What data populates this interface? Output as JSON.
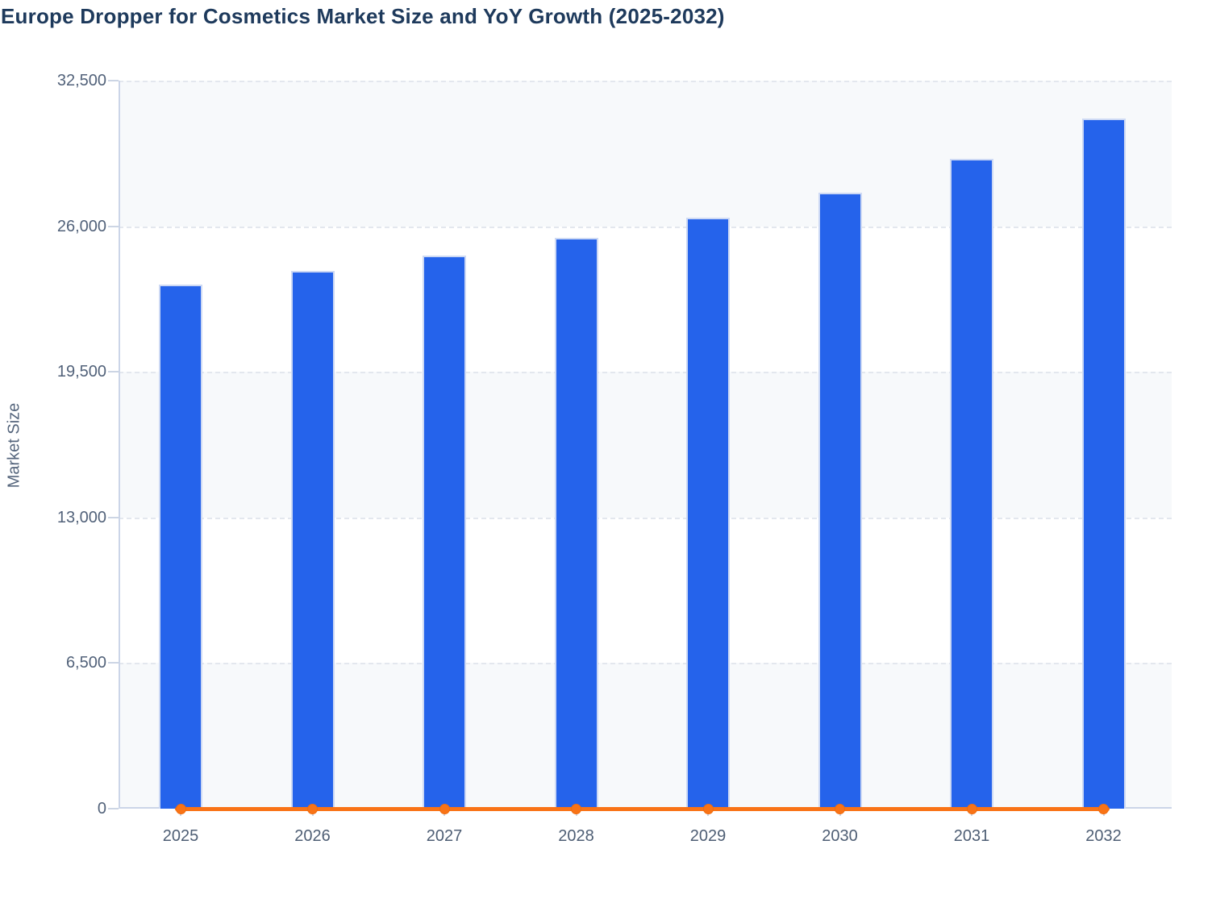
{
  "page": {
    "title": "Europe Dropper for Cosmetics Market Size and YoY Growth (2025-2032)"
  },
  "chart_data": {
    "type": "bar",
    "combo": "bar-with-line-overlay",
    "title": "Europe Dropper for Cosmetics Market Size and YoY Growth (2025-2032)",
    "categories": [
      "2025",
      "2026",
      "2027",
      "2028",
      "2029",
      "2030",
      "2031",
      "2032"
    ],
    "series": [
      {
        "name": "Market Size",
        "type": "bar",
        "color": "#2563EB",
        "values": [
          23400,
          24000,
          24700,
          25500,
          26400,
          27500,
          29000,
          30800
        ]
      },
      {
        "name": "YoY Growth",
        "type": "line",
        "color": "#F97316",
        "values": [
          0,
          0,
          0,
          0,
          0,
          0,
          0,
          0
        ]
      }
    ],
    "xlabel": "",
    "ylabel": "Market Size",
    "ylim": [
      0,
      32500
    ],
    "yticks": [
      0,
      6500,
      13000,
      19500,
      26000,
      32500
    ],
    "ytick_labels": [
      "0",
      "6,500",
      "13,000",
      "19,500",
      "26,000",
      "32,500"
    ],
    "grid": "horizontal-dashed",
    "legend": "none",
    "plot_background": "alternating-bands"
  },
  "colors": {
    "title": "#1E3A5C",
    "axis_text": "#52627A",
    "axis_line": "#CBD5E8",
    "gridline": "#E3E7EE",
    "band": "#F7F9FB",
    "band_alt": "#FFFFFF",
    "bar": "#2563EB",
    "bar_stroke": "#CDD9F4",
    "line": "#F97316"
  }
}
